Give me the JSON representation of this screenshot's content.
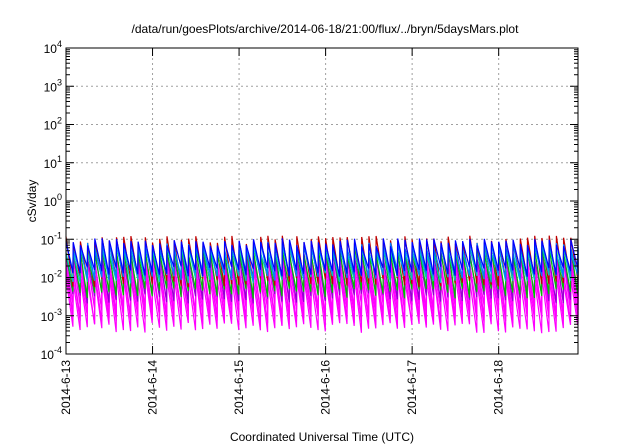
{
  "chart_data": {
    "type": "line",
    "title": "/data/run/goesPlots/archive/2014-06-18/21:00/flux/../bryn/5daysMars.plot",
    "xlabel": "Coordinated Universal Time (UTC)",
    "ylabel": "cSv/day",
    "y_scale": "log",
    "ylim": [
      0.0001,
      10000
    ],
    "xlim": [
      "2014-06-13T00:00",
      "2014-06-18T22:00"
    ],
    "x_ticks": [
      "2014-6-13",
      "2014-6-14",
      "2014-6-15",
      "2014-6-16",
      "2014-6-17",
      "2014-6-18"
    ],
    "y_ticks": [
      {
        "base": "10",
        "exp": "-4"
      },
      {
        "base": "10",
        "exp": "-3"
      },
      {
        "base": "10",
        "exp": "-2"
      },
      {
        "base": "10",
        "exp": "-1"
      },
      {
        "base": "10",
        "exp": "0"
      },
      {
        "base": "10",
        "exp": "1"
      },
      {
        "base": "10",
        "exp": "2"
      },
      {
        "base": "10",
        "exp": "3"
      },
      {
        "base": "10",
        "exp": "4"
      }
    ],
    "grid": true,
    "legend": "none",
    "sawtooth_period_hours": 2.0,
    "series": [
      {
        "color": "#ff00ff",
        "peak": 0.01,
        "trough": 0.0005
      },
      {
        "color": "#ff00ff",
        "peak": 0.016,
        "trough": 0.0008
      },
      {
        "color": "#ff00ff",
        "peak": 0.022,
        "trough": 0.0012
      },
      {
        "color": "#ff00ff",
        "peak": 0.03,
        "trough": 0.0018
      },
      {
        "color": "#9400d3",
        "peak": 0.04,
        "trough": 0.003
      },
      {
        "color": "#00c000",
        "peak": 0.05,
        "trough": 0.004
      },
      {
        "color": "#c00000",
        "peak": 0.1,
        "trough": 0.008
      },
      {
        "color": "#00c0c0",
        "peak": 0.055,
        "trough": 0.01
      },
      {
        "color": "#0080ff",
        "peak": 0.07,
        "trough": 0.012
      },
      {
        "color": "#0000ff",
        "peak": 0.085,
        "trough": 0.015
      }
    ]
  }
}
